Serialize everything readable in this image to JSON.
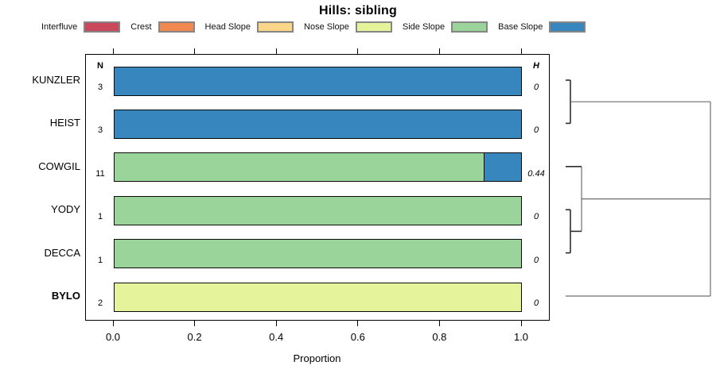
{
  "title": "Hills: sibling",
  "chart_data": {
    "type": "bar",
    "orientation": "horizontal",
    "stacked": true,
    "title": "Hills: sibling",
    "xlabel": "Proportion",
    "xlim": [
      0,
      1
    ],
    "xticks": [
      0.0,
      0.2,
      0.4,
      0.6,
      0.8,
      1.0
    ],
    "xtick_labels": [
      "0.0",
      "0.2",
      "0.4",
      "0.6",
      "0.8",
      "1.0"
    ],
    "grid": false,
    "legend_position": "top",
    "n_header": "N",
    "h_header": "H",
    "classes": [
      {
        "label": "Interfluve",
        "color": "#C9485B"
      },
      {
        "label": "Crest",
        "color": "#F1884F"
      },
      {
        "label": "Head Slope",
        "color": "#FBD588"
      },
      {
        "label": "Nose Slope",
        "color": "#E5F49B"
      },
      {
        "label": "Side Slope",
        "color": "#9BD49B"
      },
      {
        "label": "Base Slope",
        "color": "#3787BE"
      }
    ],
    "rows": [
      {
        "label": "KUNZLER",
        "bold": false,
        "n": "3",
        "h": "0",
        "segments": [
          {
            "class": "Base Slope",
            "value": 1.0
          }
        ]
      },
      {
        "label": "HEIST",
        "bold": false,
        "n": "3",
        "h": "0",
        "segments": [
          {
            "class": "Base Slope",
            "value": 1.0
          }
        ]
      },
      {
        "label": "COWGIL",
        "bold": false,
        "n": "11",
        "h": "0.44",
        "segments": [
          {
            "class": "Side Slope",
            "value": 0.909
          },
          {
            "class": "Base Slope",
            "value": 0.091
          }
        ]
      },
      {
        "label": "YODY",
        "bold": false,
        "n": "1",
        "h": "0",
        "segments": [
          {
            "class": "Side Slope",
            "value": 1.0
          }
        ]
      },
      {
        "label": "DECCA",
        "bold": false,
        "n": "1",
        "h": "0",
        "segments": [
          {
            "class": "Side Slope",
            "value": 1.0
          }
        ]
      },
      {
        "label": "BYLO",
        "bold": true,
        "n": "2",
        "h": "0",
        "segments": [
          {
            "class": "Nose Slope",
            "value": 1.0
          }
        ]
      }
    ],
    "dendrogram": {
      "leaves": [
        "KUNZLER",
        "HEIST",
        "COWGIL",
        "YODY",
        "DECCA",
        "BYLO"
      ],
      "note": "x is fraction from leaf (0) to root (1); y in row units (0 = top row center)",
      "segments": [
        {
          "x1": 0,
          "y1": 0,
          "x2": 0.033,
          "y2": 0
        },
        {
          "x1": 0,
          "y1": 1,
          "x2": 0.033,
          "y2": 1
        },
        {
          "x1": 0.033,
          "y1": 0,
          "x2": 0.033,
          "y2": 1
        },
        {
          "x1": 0.033,
          "y1": 0.5,
          "x2": 1,
          "y2": 0.5
        },
        {
          "x1": 0,
          "y1": 2,
          "x2": 0.11,
          "y2": 2
        },
        {
          "x1": 0,
          "y1": 3,
          "x2": 0.033,
          "y2": 3
        },
        {
          "x1": 0,
          "y1": 4,
          "x2": 0.033,
          "y2": 4
        },
        {
          "x1": 0.033,
          "y1": 3,
          "x2": 0.033,
          "y2": 4
        },
        {
          "x1": 0.033,
          "y1": 3.5,
          "x2": 0.11,
          "y2": 3.5
        },
        {
          "x1": 0.11,
          "y1": 2,
          "x2": 0.11,
          "y2": 3.5
        },
        {
          "x1": 0.11,
          "y1": 2.75,
          "x2": 1,
          "y2": 2.75
        },
        {
          "x1": 0,
          "y1": 5,
          "x2": 1,
          "y2": 5
        },
        {
          "x1": 1,
          "y1": 0.5,
          "x2": 1,
          "y2": 5
        }
      ]
    }
  }
}
